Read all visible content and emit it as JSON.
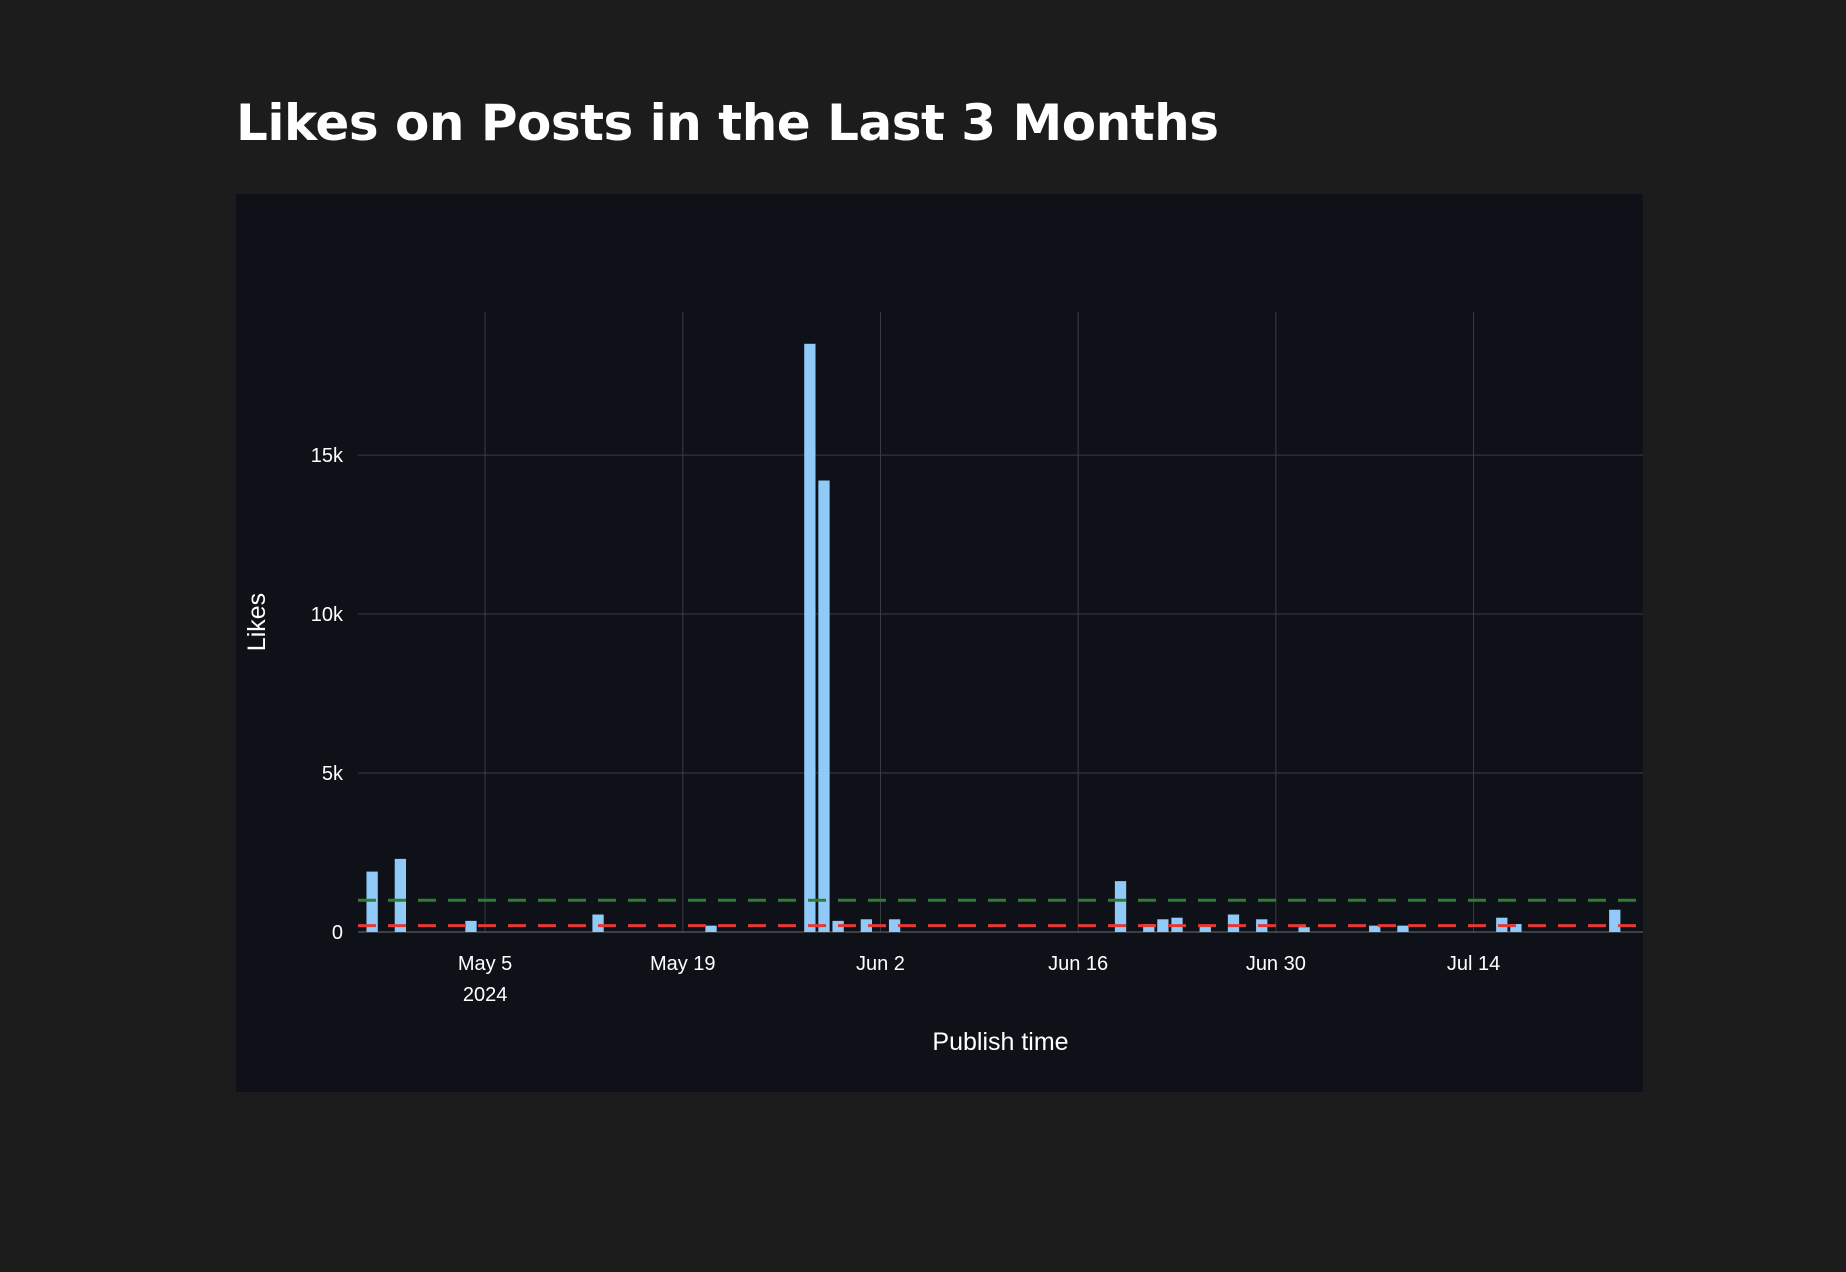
{
  "page": {
    "title": "Likes on Posts in the Last 3 Months"
  },
  "colors": {
    "page_background": "#1c1c1c",
    "chart_background": "#0e1117",
    "bar": "#90caf9",
    "grid": "#3a3d44",
    "average_line": "#2e7d32",
    "median_line": "#e53935"
  },
  "chart_data": {
    "type": "bar",
    "title": "",
    "xlabel": "Publish time",
    "ylabel": "Likes",
    "x_range": [
      "2024-04-26",
      "2024-07-26"
    ],
    "ylim": [
      0,
      19500
    ],
    "grid": true,
    "x_ticks": [
      {
        "date": "2024-05-05",
        "label": "May 5",
        "sublabel": "2024"
      },
      {
        "date": "2024-05-19",
        "label": "May 19",
        "sublabel": ""
      },
      {
        "date": "2024-06-02",
        "label": "Jun 2",
        "sublabel": ""
      },
      {
        "date": "2024-06-16",
        "label": "Jun 16",
        "sublabel": ""
      },
      {
        "date": "2024-06-30",
        "label": "Jun 30",
        "sublabel": ""
      },
      {
        "date": "2024-07-14",
        "label": "Jul 14",
        "sublabel": ""
      }
    ],
    "y_ticks": [
      {
        "value": 0,
        "label": "0"
      },
      {
        "value": 5000,
        "label": "5k"
      },
      {
        "value": 10000,
        "label": "10k"
      },
      {
        "value": 15000,
        "label": "15k"
      }
    ],
    "series": [
      {
        "x": [
          "2024-04-27",
          "2024-04-29",
          "2024-05-04",
          "2024-05-13",
          "2024-05-21",
          "2024-05-28",
          "2024-05-29",
          "2024-05-30",
          "2024-06-01",
          "2024-06-03",
          "2024-06-19",
          "2024-06-21",
          "2024-06-22",
          "2024-06-23",
          "2024-06-25",
          "2024-06-27",
          "2024-06-29",
          "2024-07-02",
          "2024-07-07",
          "2024-07-09",
          "2024-07-16",
          "2024-07-17",
          "2024-07-24"
        ],
        "values": [
          1900,
          2300,
          350,
          550,
          200,
          18500,
          14200,
          350,
          400,
          400,
          1600,
          250,
          400,
          450,
          200,
          550,
          400,
          150,
          200,
          200,
          450,
          250,
          700
        ]
      }
    ],
    "reference_lines": [
      {
        "value": 1000,
        "color": "#2e7d32",
        "style": "dashed"
      },
      {
        "value": 200,
        "color": "#e53935",
        "style": "dashed"
      }
    ]
  }
}
